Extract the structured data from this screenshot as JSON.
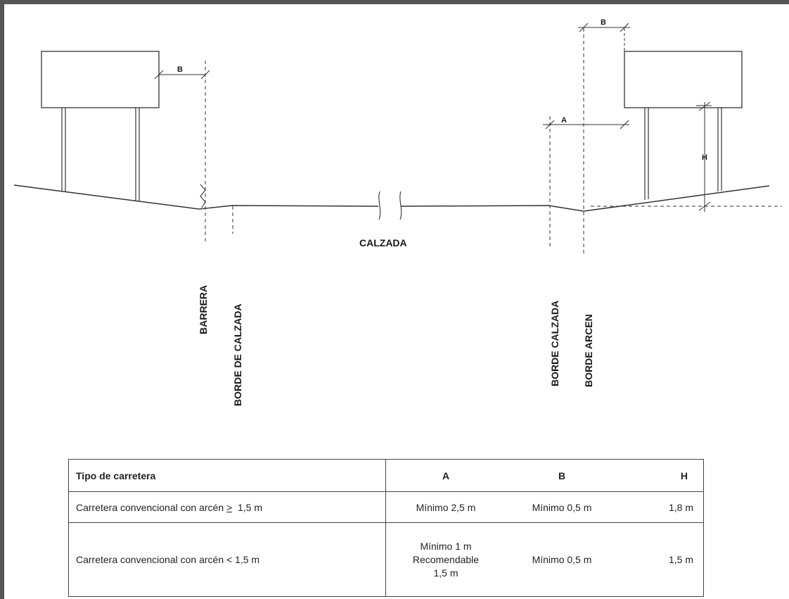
{
  "diagram": {
    "labels": {
      "calzada": "CALZADA",
      "barrera": "BARRERA",
      "borde_de_calzada": "BORDE DE CALZADA",
      "borde_calzada": "BORDE CALZADA",
      "borde_arcen": "BORDE ARCEN"
    },
    "dimensions": {
      "a": "A",
      "b_left": "B",
      "b_right": "B",
      "h": "H"
    }
  },
  "table": {
    "headers": [
      "Tipo de carretera",
      "A",
      "B",
      "H"
    ],
    "rows": [
      {
        "tipo_prefix": "Carretera convencional con arcén",
        "tipo_symbol": ">",
        "tipo_suffix": "1,5 m",
        "a": "Mínimo 2,5 m",
        "b": "Mínimo 0,5 m",
        "h": "1,8 m"
      },
      {
        "tipo": "Carretera convencional con arcén < 1,5 m",
        "a_line1": "Mínimo 1 m",
        "a_line2": "Recomendable",
        "a_line3": "1,5 m",
        "b": "Mínimo 0,5 m",
        "h": "1,5 m"
      }
    ]
  }
}
